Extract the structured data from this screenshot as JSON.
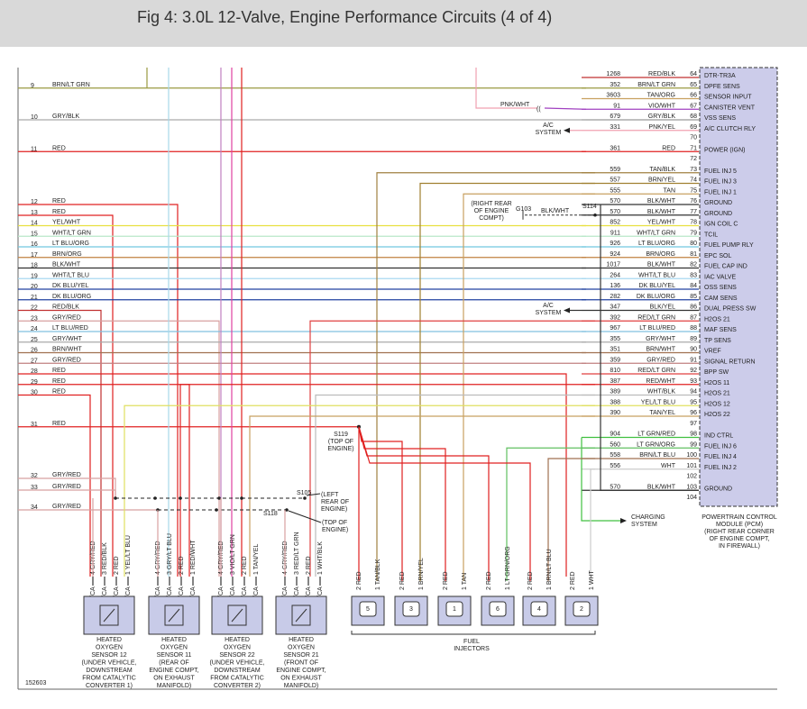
{
  "header": {
    "title": "Fig 4: 3.0L 12-Valve, Engine Performance Circuits (4 of 4)"
  },
  "pcm": {
    "pins": [
      {
        "pin": "64",
        "circuit": "1268",
        "color": "RED/BLK",
        "function": "DTR-TR3A"
      },
      {
        "pin": "65",
        "circuit": "352",
        "color": "BRN/LT GRN",
        "function": "DPFE SENS"
      },
      {
        "pin": "66",
        "circuit": "3603",
        "color": "TAN/ORG",
        "function": "SENSOR INPUT"
      },
      {
        "pin": "67",
        "circuit": "91",
        "color": "VIO/WHT",
        "function": "CANISTER VENT"
      },
      {
        "pin": "68",
        "circuit": "679",
        "color": "GRY/BLK",
        "function": "VSS SENS"
      },
      {
        "pin": "69",
        "circuit": "331",
        "color": "PNK/YEL",
        "function": "A/C CLUTCH RLY"
      },
      {
        "pin": "70"
      },
      {
        "pin": "71",
        "circuit": "361",
        "color": "RED",
        "function": "POWER (IGN)"
      },
      {
        "pin": "72"
      },
      {
        "pin": "73",
        "circuit": "559",
        "color": "TAN/BLK",
        "function": "FUEL INJ 5"
      },
      {
        "pin": "74",
        "circuit": "557",
        "color": "BRN/YEL",
        "function": "FUEL INJ 3"
      },
      {
        "pin": "75",
        "circuit": "555",
        "color": "TAN",
        "function": "FUEL INJ 1"
      },
      {
        "pin": "76",
        "circuit": "570",
        "color": "BLK/WHT",
        "function": "GROUND"
      },
      {
        "pin": "77",
        "circuit": "570",
        "color": "BLK/WHT",
        "function": "GROUND"
      },
      {
        "pin": "78",
        "circuit": "852",
        "color": "YEL/WHT",
        "function": "IGN COIL C"
      },
      {
        "pin": "79",
        "circuit": "911",
        "color": "WHT/LT GRN",
        "function": "TCIL"
      },
      {
        "pin": "80",
        "circuit": "926",
        "color": "LT BLU/ORG",
        "function": "FUEL PUMP RLY"
      },
      {
        "pin": "81",
        "circuit": "924",
        "color": "BRN/ORG",
        "function": "EPC SOL"
      },
      {
        "pin": "82",
        "circuit": "1017",
        "color": "BLK/WHT",
        "function": "FUEL CAP IND"
      },
      {
        "pin": "83",
        "circuit": "264",
        "color": "WHT/LT BLU",
        "function": "IAC VALVE"
      },
      {
        "pin": "84",
        "circuit": "136",
        "color": "DK BLU/YEL",
        "function": "OSS SENS"
      },
      {
        "pin": "85",
        "circuit": "282",
        "color": "DK BLU/ORG",
        "function": "CAM SENS"
      },
      {
        "pin": "86",
        "circuit": "347",
        "color": "BLK/YEL",
        "function": "DUAL PRESS SW"
      },
      {
        "pin": "87",
        "circuit": "392",
        "color": "RED/LT GRN",
        "function": "H2OS 21"
      },
      {
        "pin": "88",
        "circuit": "967",
        "color": "LT BLU/RED",
        "function": "MAF SENS"
      },
      {
        "pin": "89",
        "circuit": "355",
        "color": "GRY/WHT",
        "function": "TP SENS"
      },
      {
        "pin": "90",
        "circuit": "351",
        "color": "BRN/WHT",
        "function": "VREF"
      },
      {
        "pin": "91",
        "circuit": "359",
        "color": "GRY/RED",
        "function": "SIGNAL RETURN"
      },
      {
        "pin": "92",
        "circuit": "810",
        "color": "RED/LT GRN",
        "function": "BPP SW"
      },
      {
        "pin": "93",
        "circuit": "387",
        "color": "RED/WHT",
        "function": "H2OS 11"
      },
      {
        "pin": "94",
        "circuit": "389",
        "color": "WHT/BLK",
        "function": "H2OS 21"
      },
      {
        "pin": "95",
        "circuit": "388",
        "color": "YEL/LT BLU",
        "function": "H2OS 12"
      },
      {
        "pin": "96",
        "circuit": "390",
        "color": "TAN/YEL",
        "function": "H2OS 22"
      },
      {
        "pin": "97"
      },
      {
        "pin": "98",
        "circuit": "904",
        "color": "LT GRN/RED",
        "function": "IND CTRL"
      },
      {
        "pin": "99",
        "circuit": "560",
        "color": "LT GRN/ORG",
        "function": "FUEL INJ 6"
      },
      {
        "pin": "100",
        "circuit": "558",
        "color": "BRN/LT BLU",
        "function": "FUEL INJ 4"
      },
      {
        "pin": "101",
        "circuit": "556",
        "color": "WHT",
        "function": "FUEL INJ 2"
      },
      {
        "pin": "102"
      },
      {
        "pin": "103",
        "circuit": "570",
        "color": "BLK/WHT",
        "function": "GROUND"
      },
      {
        "pin": "104"
      }
    ],
    "caption": [
      "POWERTRAIN CONTROL",
      "MODULE (PCM)",
      "(RIGHT REAR CORNER",
      "OF ENGINE COMPT,",
      "IN FIREWALL)"
    ]
  },
  "wires": [
    {
      "num": "9",
      "color": "BRN/LT GRN"
    },
    {
      "num": "10",
      "color": "GRY/BLK"
    },
    {
      "num": "11",
      "color": "RED"
    },
    {
      "num": "12",
      "color": "RED"
    },
    {
      "num": "13",
      "color": "RED"
    },
    {
      "num": "14",
      "color": "YEL/WHT"
    },
    {
      "num": "15",
      "color": "WHT/LT GRN"
    },
    {
      "num": "16",
      "color": "LT BLU/ORG"
    },
    {
      "num": "17",
      "color": "BRN/ORG"
    },
    {
      "num": "18",
      "color": "BLK/WHT"
    },
    {
      "num": "19",
      "color": "WHT/LT BLU"
    },
    {
      "num": "20",
      "color": "DK BLU/YEL"
    },
    {
      "num": "21",
      "color": "DK BLU/ORG"
    },
    {
      "num": "22",
      "color": "RED/BLK"
    },
    {
      "num": "23",
      "color": "GRY/RED"
    },
    {
      "num": "24",
      "color": "LT BLU/RED"
    },
    {
      "num": "25",
      "color": "GRY/WHT"
    },
    {
      "num": "26",
      "color": "BRN/WHT"
    },
    {
      "num": "27",
      "color": "GRY/RED"
    },
    {
      "num": "28",
      "color": "RED"
    },
    {
      "num": "29",
      "color": "RED"
    },
    {
      "num": "30",
      "color": "RED"
    },
    {
      "num": "31",
      "color": "RED"
    },
    {
      "num": "32",
      "color": "GRY/RED"
    },
    {
      "num": "33",
      "color": "GRY/RED"
    },
    {
      "num": "34",
      "color": "GRY/RED"
    }
  ],
  "sensors": [
    {
      "pins": [
        "4 GRY/RED",
        "3 RED/BLK",
        "2 RED",
        "1 YEL/LT BLU"
      ],
      "tag": "N/CA",
      "caption": [
        "HEATED",
        "OXYGEN",
        "SENSOR 12",
        "(UNDER VEHICLE,",
        "DOWNSTREAM",
        "FROM CATALYTIC",
        "CONVERTER 1)"
      ]
    },
    {
      "pins": [
        "4 GRY/RED",
        "3 GRY/LT BLU",
        "2 RED",
        "1 RED/WHT"
      ],
      "tag": "N/CA",
      "caption": [
        "HEATED",
        "OXYGEN",
        "SENSOR 11",
        "(REAR OF",
        "ENGINE COMPT,",
        "ON EXHAUST",
        "MANIFOLD)"
      ]
    },
    {
      "pins": [
        "4 GRY/RED",
        "3 VIO/LT GRN",
        "2 RED",
        "1 TAN/YEL"
      ],
      "tag": "N/CA",
      "caption": [
        "HEATED",
        "OXYGEN",
        "SENSOR 22",
        "(UNDER VEHICLE,",
        "DOWNSTREAM",
        "FROM CATALYTIC",
        "CONVERTER 2)"
      ]
    },
    {
      "pins": [
        "4 GRY/RED",
        "3 RED/LT GRN",
        "2 RED",
        "1 WHT/BLK"
      ],
      "tag": "N/CA",
      "caption": [
        "HEATED",
        "OXYGEN",
        "SENSOR 21",
        "(FRONT OF",
        "ENGINE COMPT,",
        "ON EXHAUST",
        "MANIFOLD)"
      ]
    }
  ],
  "injectors": {
    "items": [
      {
        "number": "5",
        "pins": [
          "2 RED",
          "1 TAN/BLK"
        ]
      },
      {
        "number": "3",
        "pins": [
          "2 RED",
          "1 BRN/YEL"
        ]
      },
      {
        "number": "1",
        "pins": [
          "2 RED",
          "1 TAN"
        ]
      },
      {
        "number": "6",
        "pins": [
          "2 RED",
          "1 LT GRN/ORG"
        ]
      },
      {
        "number": "4",
        "pins": [
          "2 RED",
          "1 BRN/LT BLU"
        ]
      },
      {
        "number": "2",
        "pins": [
          "2 RED",
          "1 WHT"
        ]
      }
    ],
    "caption": [
      "FUEL",
      "INJECTORS"
    ]
  },
  "notes": {
    "pnk_wht": "PNK/WHT",
    "ac_system_1": [
      "A/C",
      "SYSTEM"
    ],
    "ac_system_2": [
      "A/C",
      "SYSTEM"
    ],
    "ground_location": [
      "(RIGHT REAR",
      "OF ENGINE",
      "COMPT)"
    ],
    "g103": "G103",
    "blk_wht": "BLK/WHT",
    "s114": "S114",
    "s119": [
      "S119",
      "(TOP OF",
      "ENGINE)"
    ],
    "s105": "S105",
    "s105_location": [
      "(LEFT",
      "REAR OF",
      "ENGINE)"
    ],
    "s118": "S118",
    "s118_location": [
      "(TOP OF",
      "ENGINE)"
    ],
    "charging_system": [
      "CHARGING",
      "SYSTEM"
    ],
    "figure_id": "152603"
  }
}
